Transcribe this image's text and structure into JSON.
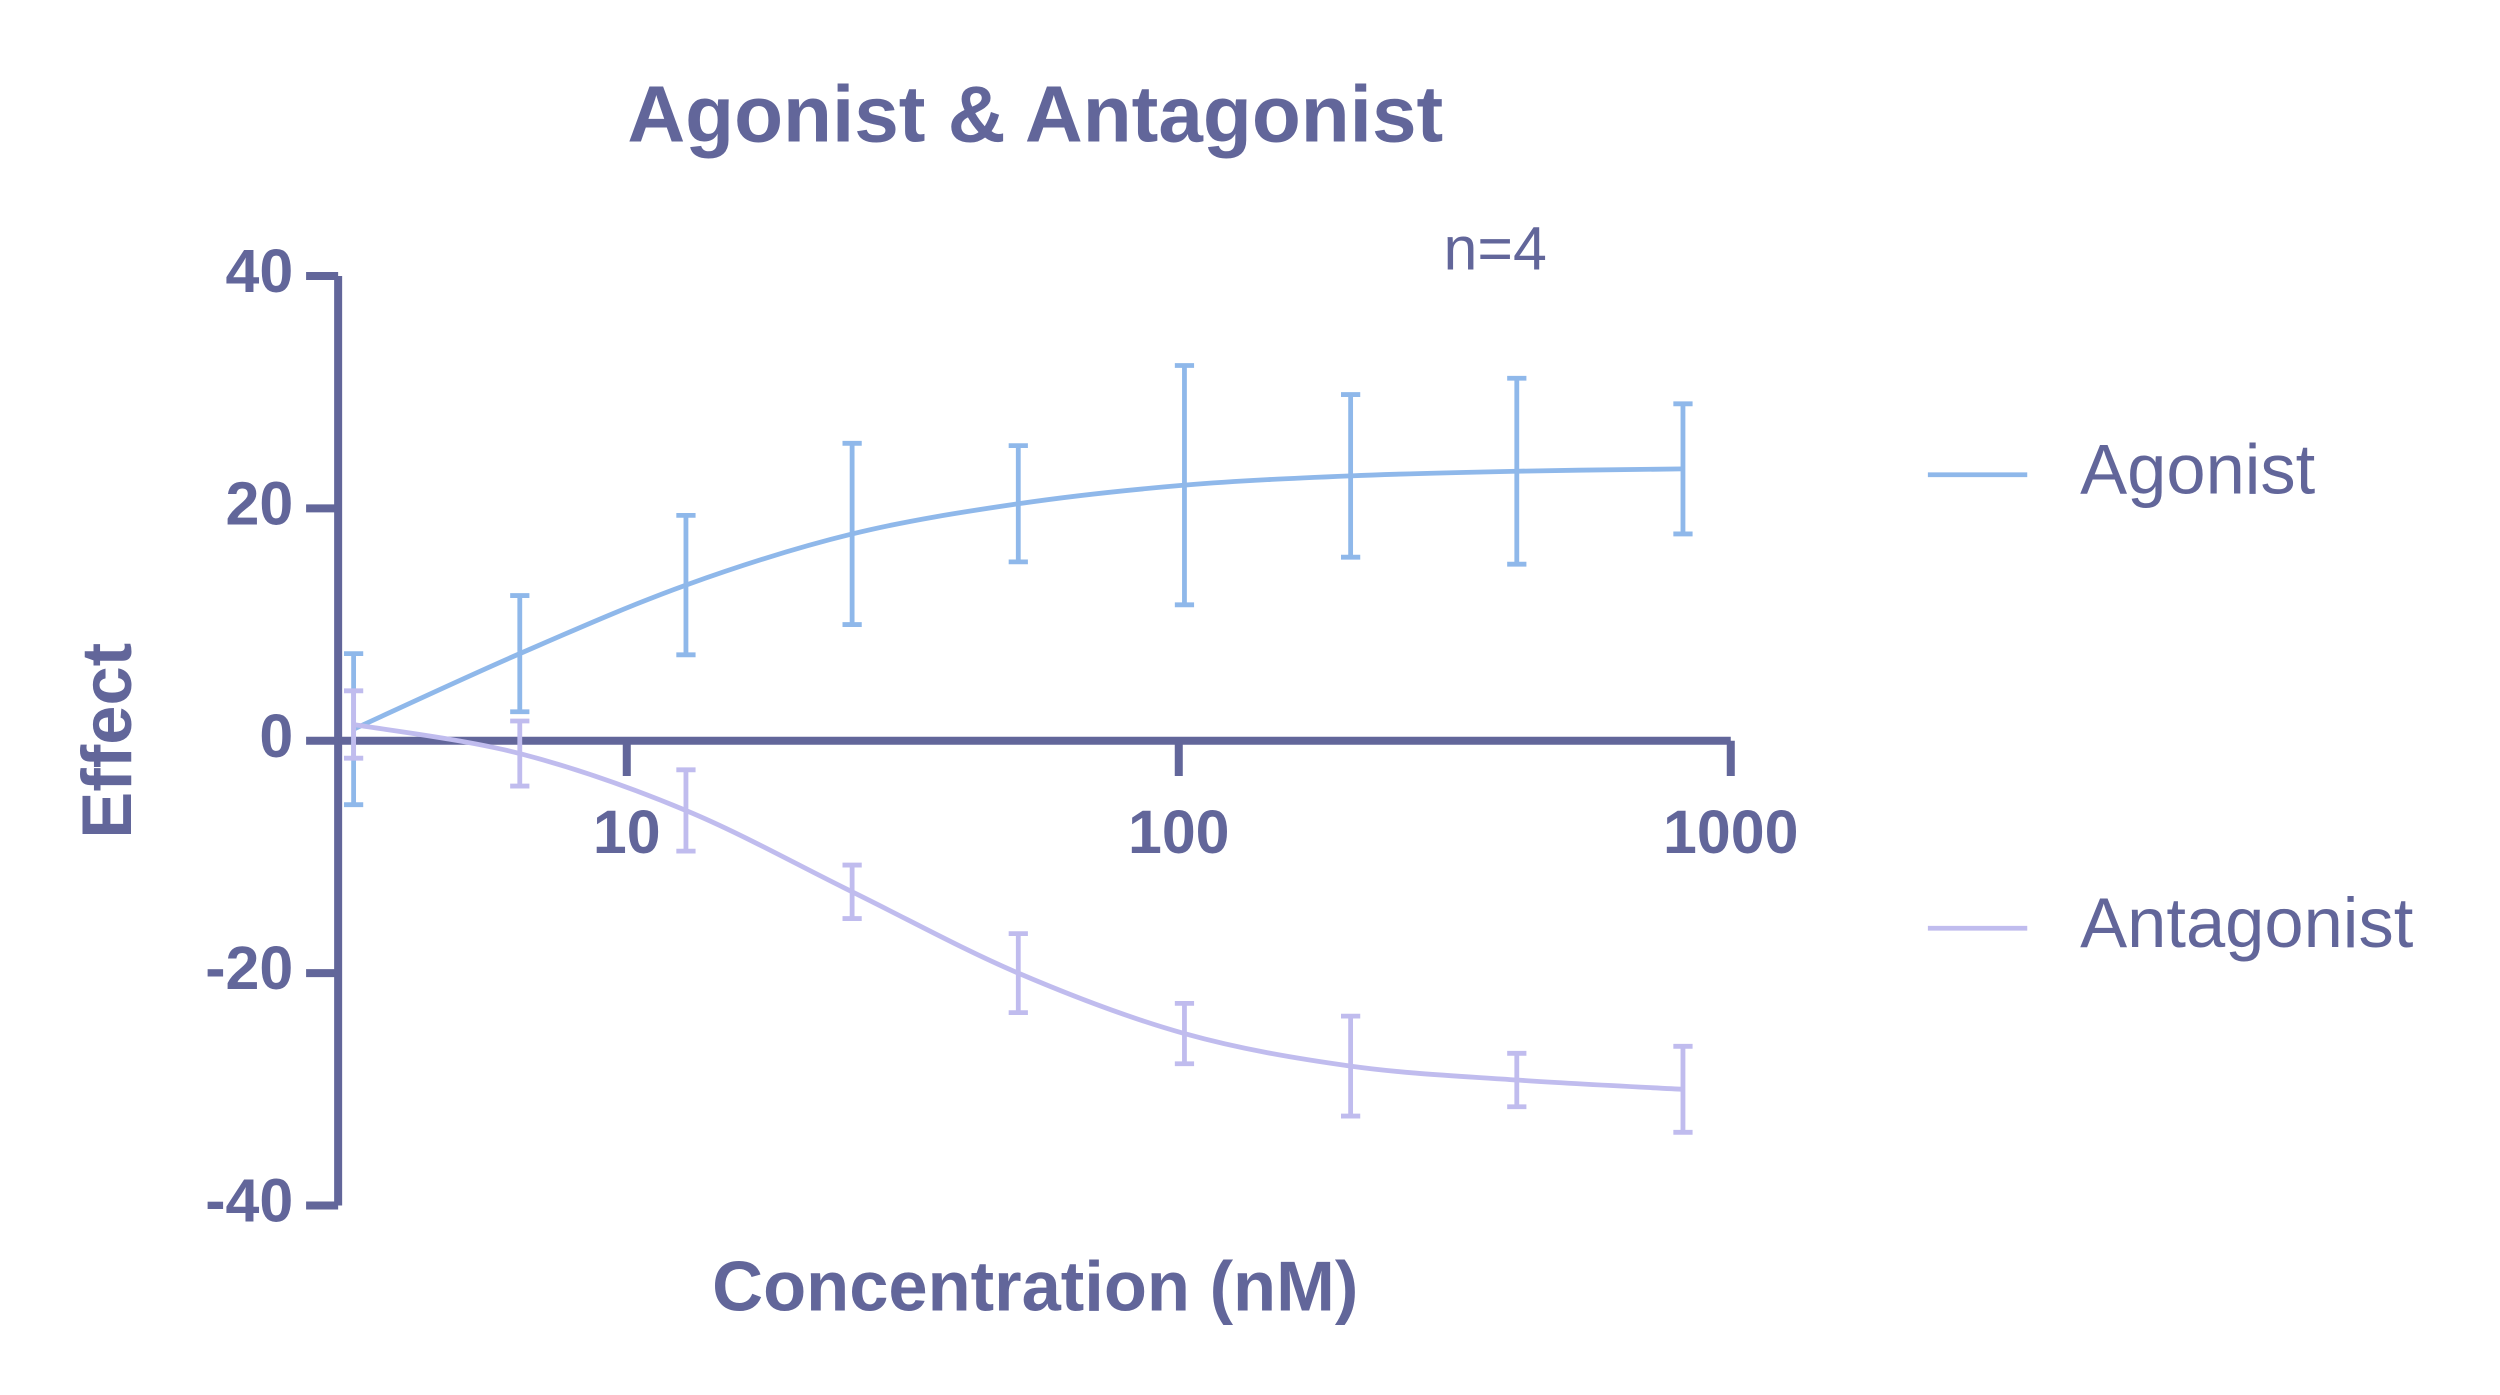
{
  "chart_data": {
    "type": "line",
    "title": "Agonist & Antagonist",
    "annotation": "n=4",
    "x_label": "Concentration (nM)",
    "y_label": "Effect",
    "x_scale": "log",
    "x": [
      3.2,
      6.4,
      12.8,
      25.6,
      51.2,
      102.4,
      204.8,
      409.6,
      819.2
    ],
    "series": [
      {
        "name": "Agonist",
        "color": "#8fb8ea",
        "values": [
          1,
          7.5,
          13.4,
          17.8,
          20.4,
          22,
          22.8,
          23.2,
          23.4
        ],
        "error": [
          6.5,
          5,
          6,
          7.8,
          5,
          10.3,
          7,
          8,
          5.6
        ]
      },
      {
        "name": "Antagonist",
        "color": "#c0bcee",
        "values": [
          1.4,
          -1.1,
          -6,
          -13,
          -20,
          -25.2,
          -28,
          -29.2,
          -30
        ],
        "error": [
          2.9,
          2.8,
          3.5,
          2.3,
          3.4,
          2.6,
          4.3,
          2.3,
          3.7
        ]
      }
    ],
    "xlim": [
      3,
      1000
    ],
    "xticks": [
      10,
      100,
      1000
    ],
    "ylim": [
      -40,
      40
    ],
    "yticks": [
      40,
      20,
      0,
      -20,
      -40
    ],
    "axis_color": "#62669a",
    "legend": "right"
  }
}
